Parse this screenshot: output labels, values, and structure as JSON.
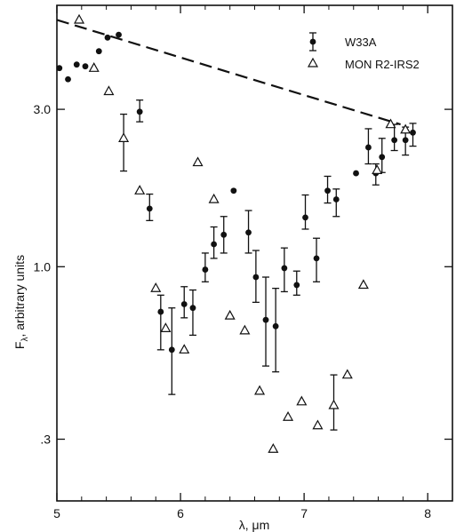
{
  "chart_data": {
    "type": "scatter",
    "title": "",
    "xlabel": "λ, μm",
    "ylabel": "Fλ, arbitrary units",
    "ylabel_main": "F",
    "ylabel_sub": "λ",
    "ylabel_rest": ", arbitrary units",
    "xscale": "linear",
    "yscale": "log",
    "xlim": [
      5.0,
      8.2
    ],
    "ylim": [
      0.195,
      6.2
    ],
    "xticks": [
      5,
      6,
      7,
      8
    ],
    "xtick_labels": [
      "5",
      "6",
      "7",
      "8"
    ],
    "yticks": [
      0.3,
      1.0,
      3.0
    ],
    "ytick_labels": [
      ".3",
      "1.0",
      "3.0"
    ],
    "grid": false,
    "legend_position": "top-right",
    "series": [
      {
        "name": "W33A",
        "marker": "filled-circle",
        "points": [
          {
            "x": 5.02,
            "y": 4.0
          },
          {
            "x": 5.09,
            "y": 3.7
          },
          {
            "x": 5.16,
            "y": 4.1
          },
          {
            "x": 5.23,
            "y": 4.05
          },
          {
            "x": 5.34,
            "y": 4.5
          },
          {
            "x": 5.41,
            "y": 4.95
          },
          {
            "x": 5.5,
            "y": 5.05
          },
          {
            "x": 5.67,
            "y": 2.95,
            "err": [
              2.75,
              3.2
            ]
          },
          {
            "x": 5.75,
            "y": 1.5,
            "err": [
              1.38,
              1.66
            ]
          },
          {
            "x": 5.84,
            "y": 0.73,
            "err": [
              0.56,
              0.82
            ]
          },
          {
            "x": 5.93,
            "y": 0.56,
            "err": [
              0.41,
              0.75
            ]
          },
          {
            "x": 6.03,
            "y": 0.77,
            "err": [
              0.7,
              0.87
            ]
          },
          {
            "x": 6.1,
            "y": 0.75,
            "err": [
              0.62,
              0.85
            ]
          },
          {
            "x": 6.2,
            "y": 0.98,
            "err": [
              0.9,
              1.1
            ]
          },
          {
            "x": 6.27,
            "y": 1.17,
            "err": [
              1.06,
              1.32
            ]
          },
          {
            "x": 6.35,
            "y": 1.25,
            "err": [
              1.1,
              1.42
            ]
          },
          {
            "x": 6.43,
            "y": 1.7
          },
          {
            "x": 6.55,
            "y": 1.27,
            "err": [
              1.1,
              1.48
            ]
          },
          {
            "x": 6.61,
            "y": 0.93,
            "err": [
              0.78,
              1.12
            ]
          },
          {
            "x": 6.69,
            "y": 0.69,
            "err": [
              0.5,
              0.93
            ]
          },
          {
            "x": 6.77,
            "y": 0.66,
            "err": [
              0.48,
              0.86
            ]
          },
          {
            "x": 6.84,
            "y": 0.99,
            "err": [
              0.84,
              1.14
            ]
          },
          {
            "x": 6.94,
            "y": 0.88,
            "err": [
              0.82,
              0.97
            ]
          },
          {
            "x": 7.01,
            "y": 1.41,
            "err": [
              1.3,
              1.65
            ]
          },
          {
            "x": 7.1,
            "y": 1.06,
            "err": [
              0.9,
              1.22
            ]
          },
          {
            "x": 7.19,
            "y": 1.7,
            "err": [
              1.56,
              1.88
            ]
          },
          {
            "x": 7.26,
            "y": 1.6,
            "err": [
              1.42,
              1.72
            ]
          },
          {
            "x": 7.42,
            "y": 1.92
          },
          {
            "x": 7.52,
            "y": 2.3,
            "err": [
              2.05,
              2.62
            ]
          },
          {
            "x": 7.58,
            "y": 1.92,
            "err": [
              1.77,
              2.05
            ]
          },
          {
            "x": 7.63,
            "y": 2.15,
            "err": [
              1.93,
              2.45
            ]
          },
          {
            "x": 7.73,
            "y": 2.42,
            "err": [
              2.25,
              2.7
            ]
          },
          {
            "x": 7.82,
            "y": 2.42,
            "err": [
              2.18,
              2.65
            ]
          },
          {
            "x": 7.88,
            "y": 2.55,
            "err": [
              2.32,
              2.72
            ]
          }
        ]
      },
      {
        "name": "MON R2-IRS2",
        "marker": "open-triangle",
        "points": [
          {
            "x": 5.18,
            "y": 5.6
          },
          {
            "x": 5.3,
            "y": 4.0
          },
          {
            "x": 5.42,
            "y": 3.4
          },
          {
            "x": 5.54,
            "y": 2.45,
            "err": [
              1.95,
              2.9
            ]
          },
          {
            "x": 5.67,
            "y": 1.7
          },
          {
            "x": 5.8,
            "y": 0.86
          },
          {
            "x": 5.88,
            "y": 0.65
          },
          {
            "x": 6.03,
            "y": 0.56
          },
          {
            "x": 6.14,
            "y": 2.07
          },
          {
            "x": 6.27,
            "y": 1.6
          },
          {
            "x": 6.4,
            "y": 0.71
          },
          {
            "x": 6.52,
            "y": 0.64
          },
          {
            "x": 6.64,
            "y": 0.42
          },
          {
            "x": 6.75,
            "y": 0.28
          },
          {
            "x": 6.87,
            "y": 0.35
          },
          {
            "x": 6.98,
            "y": 0.39
          },
          {
            "x": 7.11,
            "y": 0.33
          },
          {
            "x": 7.24,
            "y": 0.38,
            "err": [
              0.32,
              0.47
            ]
          },
          {
            "x": 7.35,
            "y": 0.47
          },
          {
            "x": 7.48,
            "y": 0.88
          },
          {
            "x": 7.59,
            "y": 1.96
          },
          {
            "x": 7.7,
            "y": 2.7
          },
          {
            "x": 7.82,
            "y": 2.6
          }
        ]
      }
    ],
    "reference_line": {
      "style": "dashed",
      "points": [
        {
          "x": 5.0,
          "y": 5.6
        },
        {
          "x": 7.78,
          "y": 2.7
        }
      ]
    }
  }
}
